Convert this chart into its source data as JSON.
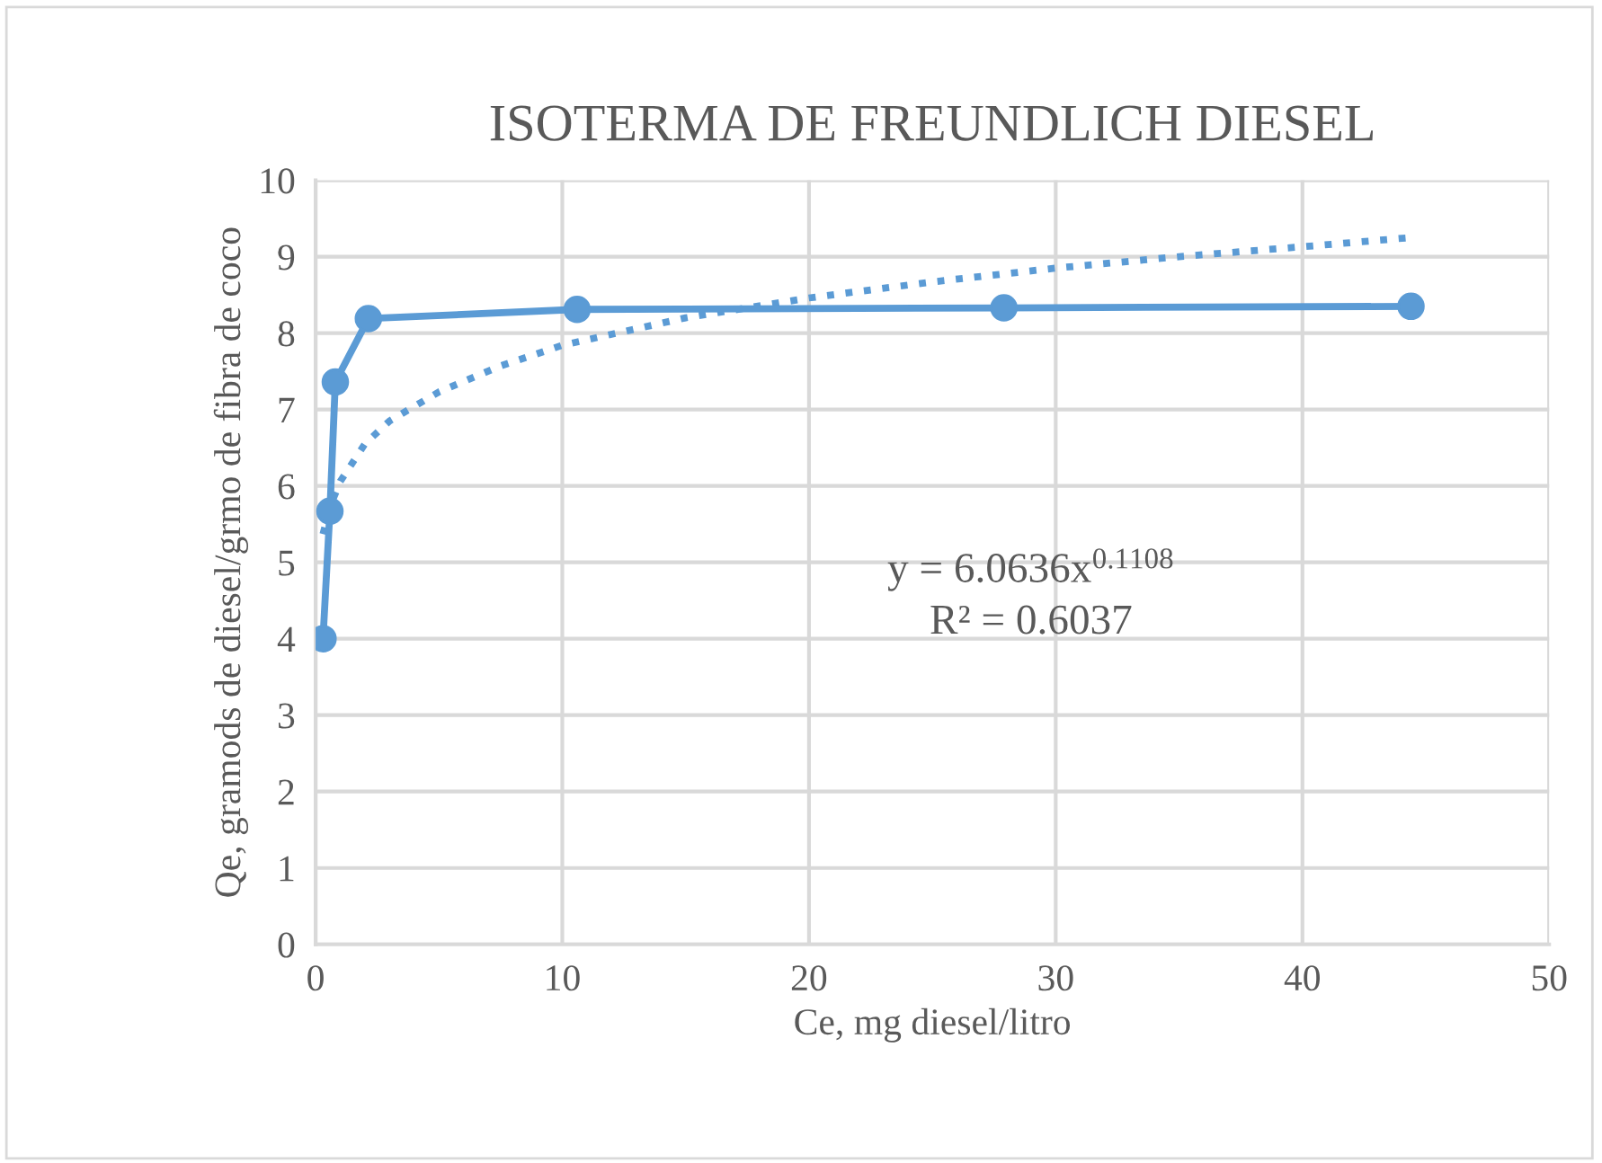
{
  "chart_data": {
    "type": "line",
    "title": "ISOTERMA DE FREUNDLICH DIESEL",
    "xlabel": "Ce, mg diesel/litro",
    "ylabel": "Qe, gramods de diesel/grmo de fibra de coco",
    "series": [
      {
        "color": "#5b9bd5",
        "marker": "circle",
        "line_style": "solid",
        "x": [
          0.3,
          0.58,
          0.8,
          2.14,
          10.6,
          27.9,
          44.4
        ],
        "values": [
          4.0,
          5.67,
          7.36,
          8.19,
          8.31,
          8.33,
          8.35
        ]
      },
      {
        "type": "line",
        "color": "#5b9bd5",
        "marker": "none",
        "line_style": "dotted",
        "x": [
          0.3,
          0.6,
          1,
          2,
          3,
          5,
          7.5,
          10,
          15,
          20,
          25,
          30,
          35,
          40,
          44.4
        ],
        "values": [
          5.37,
          5.74,
          6.06,
          6.55,
          6.85,
          7.23,
          7.57,
          7.84,
          8.2,
          8.46,
          8.67,
          8.85,
          9.0,
          9.13,
          9.25
        ]
      }
    ],
    "annotations": [
      "y = 6.0636x$^{0.1108}$",
      "R² = 0.6037"
    ],
    "xlim": [
      0,
      50
    ],
    "xticks": [
      0,
      10,
      20,
      30,
      40,
      50
    ],
    "ylim": [
      0,
      10
    ],
    "yticks": [
      0,
      1,
      2,
      3,
      4,
      5,
      6,
      7,
      8,
      9,
      10
    ],
    "grid": true,
    "legend": false
  }
}
